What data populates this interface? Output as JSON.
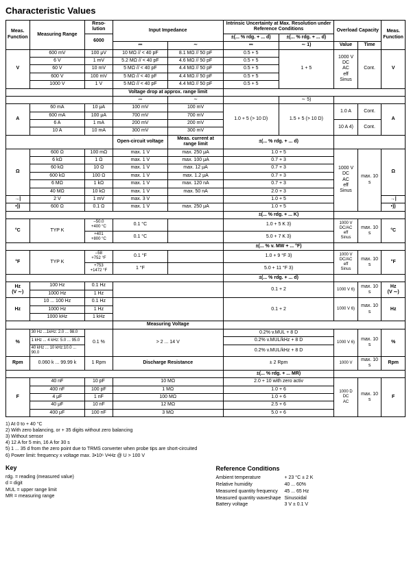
{
  "title": "Characteristic Values",
  "hdr": {
    "measFunc": "Meas.\nFunction",
    "measRange": "Measuring Range",
    "reso": "Reso-\nlution",
    "reso6000": "6000",
    "inputImp": "Input Impedance",
    "intrinsic": "Intrinsic Uncertainty at Max. Resolution\nunder Reference Conditions",
    "pmRdg": "±(... % rdg. + ... d)",
    "overload": "Overload Capacity",
    "value": "Value",
    "time": "Time",
    "dc": "⎓",
    "ac": "∼",
    "acSup": "∼ 1)"
  },
  "V": {
    "sym": "V",
    "r": [
      [
        "600 mV",
        "100 μV",
        "10 MΩ // < 40 pF",
        "8.1 MΩ // 50 pF",
        "0.5 + 5"
      ],
      [
        "6 V",
        "1 mV",
        "5.2 MΩ // < 40 pF",
        "4.6 MΩ // 50 pF",
        "0.5 + 5"
      ],
      [
        "60 V",
        "10 mV",
        "5 MΩ // < 40 pF",
        "4.4 MΩ // 50 pF",
        "0.5 + 5"
      ],
      [
        "600 V",
        "100 mV",
        "5 MΩ // < 40 pF",
        "4.4 MΩ // 50 pF",
        "0.5 + 5"
      ],
      [
        "1000 V",
        "1 V",
        "5 MΩ // < 40 pF",
        "4.4 MΩ // 50 pF",
        "0.5 + 5"
      ]
    ],
    "col7": "1 + 5",
    "ov": "1000 V\nDC\nAC\neff\nSinus",
    "ovt": "Cont."
  },
  "vdropHdr": "Voltage drop at approx. range limit",
  "vdropRow": {
    "c4": "⎓",
    "c5": "∼",
    "c7": "∼ 5)"
  },
  "A": {
    "sym": "A",
    "r": [
      [
        "60 mA",
        "10 μA",
        "100 mV",
        "100 mV"
      ],
      [
        "600 mA",
        "100 μA",
        "700 mV",
        "700 mV"
      ],
      [
        "6 A",
        "1 mA",
        "200 mV",
        "200 mV"
      ],
      [
        "10 A",
        "10 mA",
        "300 mV",
        "300 mV"
      ]
    ],
    "c6": "1.0 + 5 (> 10 D)",
    "c7": "1.5 + 5 (> 10 D)",
    "ov1v": "1.0 A",
    "ov1t": "Cont.",
    "ov2v": "10 A 4)",
    "ov2t": "Cont."
  },
  "ohmHdr": {
    "c4": "Open-circuit voltage",
    "c5": "Meas. current at\nrange limit",
    "c67": "±(... % rdg. + ... d)"
  },
  "O": {
    "sym": "Ω",
    "r": [
      [
        "600 Ω",
        "100 mΩ",
        "max. 1 V",
        "max. 250 μA",
        "1.0 + 5"
      ],
      [
        "6 kΩ",
        "1 Ω",
        "max. 1 V",
        "max. 100 μA",
        "0.7 + 3"
      ],
      [
        "60 kΩ",
        "10 Ω",
        "max. 1 V",
        "max. 12 μA",
        "0.7 + 3"
      ],
      [
        "600 kΩ",
        "100 Ω",
        "max. 1 V",
        "max. 1.2 μA",
        "0.7 + 3"
      ],
      [
        "6 MΩ",
        "1 kΩ",
        "max. 1 V",
        "max. 120 nA",
        "0.7 + 3"
      ],
      [
        "40 MΩ",
        "10 kΩ",
        "max. 1 V",
        "max. 50 nA",
        "2.0 + 3"
      ]
    ],
    "ov": "1000 V\nDC\nAC\neff\nSinus",
    "ovt": "max. 10 s"
  },
  "diode": {
    "sym": "→|",
    "range": "2 V",
    "reso": "1 mV",
    "ocv": "max. 3 V",
    "meas": "",
    "unc": "1.0 + 5"
  },
  "cont": {
    "sym": "•))",
    "range": "600 Ω",
    "reso": "0.1 Ω",
    "ocv": "max. 1 V",
    "meas": "max. 250 μA",
    "unc": "1.0 + 5"
  },
  "tempKHdr": "±(... % rdg. + ... K)",
  "degC": {
    "sym": "°C",
    "lbl": "TYP K",
    "r1r": "–50.0\n+400 °C",
    "r1res": "0.1 °C",
    "r1u": "1.0 + 5 K 3)",
    "r2r": "+401\n+800 °C",
    "r2res": "0.1 °C",
    "r2u": "5.0 + 7 K 3)",
    "ov": "1000 V\nDC/AC\neff\nSinus",
    "ovt": "max. 10 s"
  },
  "tempFHdr": "±(... % v. MW + ... °F)",
  "degF": {
    "sym": "°F",
    "lbl": "TYP K",
    "r1r": "–58\n+752 °F",
    "r1res": "0.1 °F",
    "r1u": "1.0 + 9 °F 3)",
    "r2r": "+753\n+1472 °F",
    "r2res": "1 °F",
    "r2u": "5.0 + 11 °F 3)",
    "ov": "1000 V\nDC/AC\neff\nSinus",
    "ovt": "max. 10 s"
  },
  "rdgHdr2": "±(... % rdg. + ... d)",
  "HzV": {
    "sym": "Hz\n(V ∼)",
    "r": [
      [
        "100 Hz",
        "0.1 Hz"
      ],
      [
        "1000 Hz",
        "1 Hz"
      ]
    ],
    "u": "0.1 + 2",
    "ov": "1000 V 6)",
    "ovt": "max. 10 s"
  },
  "Hz": {
    "sym": "Hz",
    "r": [
      [
        "10 ... 100 Hz",
        "0.1 Hz"
      ],
      [
        "1000 Hz",
        "1 Hz"
      ],
      [
        "1000 kHz",
        "1 kHz"
      ]
    ],
    "u": "0.1 + 2",
    "ov": "1000 V 6)",
    "ovt": "max. 10 s"
  },
  "measV": "Measuring Voltage",
  "pct": {
    "sym": "%",
    "r": [
      [
        "30 Hz ...1kHz: 2.0 ... 98.0"
      ],
      [
        "1 kHz ... 4 kHz: 5.0 ... 95.0"
      ],
      [
        "40 kHz ... 10 kHz:10.0 ... 90.0"
      ]
    ],
    "reso": "0.1 %",
    "mv": "> 2 ... 14 V",
    "u": [
      "0.2% v.MUL + 8 D",
      "0.2% v.MUL/kHz + 8 D",
      "0.2% v.MUL/kHz + 8 D"
    ],
    "ov": "1000 V 6)",
    "ovt": "max. 10 s"
  },
  "rpm": {
    "sym": "Rpm",
    "range": "0.060 k ... 99.99 k",
    "reso": "1 Rpm",
    "h": "Discharge Resistance",
    "u": "± 2 Rpm",
    "ov": "1000 V",
    "ovt": "max. 10 s"
  },
  "mrHdr": "±(... % rdg. + ... MR)",
  "F": {
    "sym": "F",
    "r": [
      [
        "40 nF",
        "10 pF",
        "10 MΩ",
        "2.0 + 10 with zero activ"
      ],
      [
        "400 nF",
        "100 pF",
        "1 MΩ",
        "1.0 + 6"
      ],
      [
        "4 μF",
        "1 nF",
        "100 MΩ",
        "1.0 + 6"
      ],
      [
        "40 μF",
        "10 nF",
        "12 MΩ",
        "2.5 + 6"
      ],
      [
        "400 μF",
        "100 nF",
        "3 MΩ",
        "5.0 + 6"
      ]
    ],
    "ov": "1000 D\nDC\nAC",
    "ovt": "max. 10 s"
  },
  "fn": [
    "1) At 0 to + 40 °C",
    "2) With zero balancing, or + 35 digits without zero balancing",
    "3) Without sensor",
    "4) 12 A for 5 min, 16 A for 30 s",
    "5) 1 ... 35 d from the zero point due to TRMS converter when probe tips are short-circuited",
    "6) Power limit: frequency x voltage max. 3•10⁶ V•Hz @ U > 100 V"
  ],
  "key": {
    "title": "Key",
    "lines": [
      "rdg. = reading (measured value)",
      "d = digit",
      "MUL = upper range limit",
      "MR = measuring range"
    ]
  },
  "ref": {
    "title": "Reference Conditions",
    "rows": [
      [
        "Ambient temperature",
        "+ 23 °C ± 2 K"
      ],
      [
        "Relative humidity",
        "40 ... 60%"
      ],
      [
        "Measured quantity frequency",
        "45 ... 65 Hz"
      ],
      [
        "Measured quantity waveshape",
        "Sinusoidal"
      ],
      [
        "Battery voltage",
        "3 V ± 0.1 V"
      ]
    ]
  }
}
